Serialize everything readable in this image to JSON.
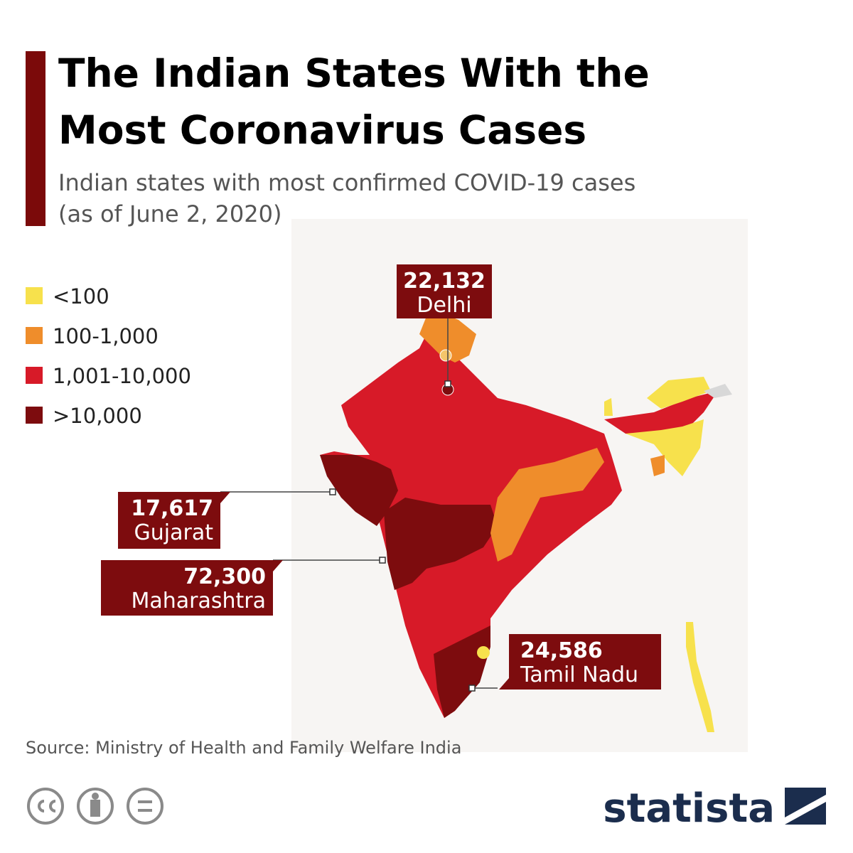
{
  "header": {
    "title": [
      "The Indian States With the",
      "Most Coronavirus Cases"
    ],
    "subtitle": [
      "Indian states with most confirmed COVID-19 cases",
      "(as of June 2, 2020)"
    ]
  },
  "legend": {
    "items": [
      {
        "label": "<100",
        "color": "#f7e14c"
      },
      {
        "label": "100-1,000",
        "color": "#ef8d2b"
      },
      {
        "label": "1,001-10,000",
        "color": "#d71a28"
      },
      {
        "label": ">10,000",
        "color": "#7d0c0e"
      }
    ]
  },
  "callouts": [
    {
      "value": "22,132",
      "region": "Delhi"
    },
    {
      "value": "17,617",
      "region": "Gujarat"
    },
    {
      "value": "72,300",
      "region": "Maharashtra"
    },
    {
      "value": "24,586",
      "region": "Tamil Nadu"
    }
  ],
  "footer": {
    "source": "Source: Ministry of Health and Family Welfare India",
    "logo": "statista"
  }
}
